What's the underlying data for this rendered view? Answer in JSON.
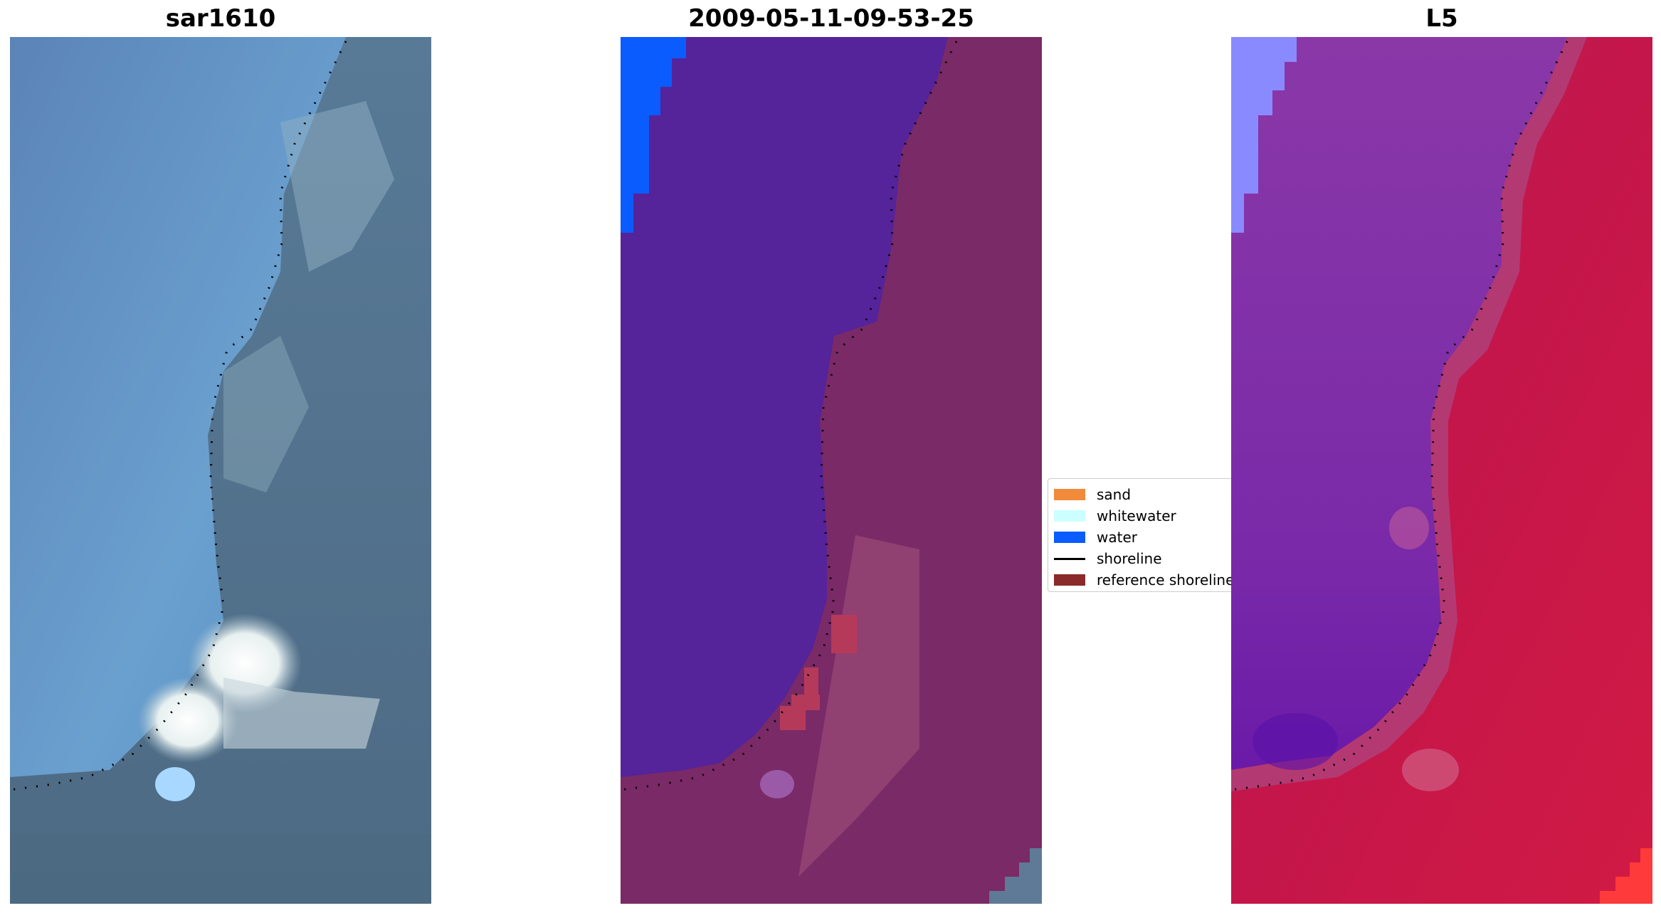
{
  "panels": {
    "rgb_title": "sar1610",
    "classified_title": "2009-05-11-09-53-25",
    "index_title": "L5"
  },
  "legend": {
    "items": [
      {
        "label": "sand",
        "color": "#f28a3c",
        "kind": "patch"
      },
      {
        "label": "whitewater",
        "color": "#ccffff",
        "kind": "patch"
      },
      {
        "label": "water",
        "color": "#0a5cff",
        "kind": "patch"
      },
      {
        "label": "shoreline",
        "color": "#000000",
        "kind": "line"
      },
      {
        "label": "reference shoreline",
        "color": "#8b2a2a",
        "kind": "patch"
      }
    ]
  },
  "colors": {
    "water_class": "#0a5cff",
    "classified_water_bg": "#55239a",
    "classified_land_bg": "#7a2a66",
    "index_water_bg": "#7d2aa6",
    "index_land_bg": "#c4164a",
    "rgb_water_bg": "#5f8fbf",
    "rgb_land_bg": "#4e6e8c"
  }
}
